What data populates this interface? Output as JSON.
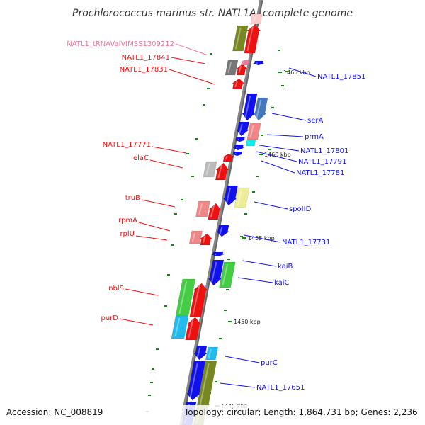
{
  "title": "Prochlorococcus marinus str. NATL1A, complete genome",
  "accession": "Accession: NC_008819",
  "topology": "Topology: circular; Length: 1,864,731 bp; Genes: 2,236",
  "colors": {
    "backbone": "#888888",
    "red": "#ee1111",
    "blue": "#1111ee",
    "pink": "#ee7799",
    "olive": "#778822",
    "green": "#44cc44",
    "gray": "#777777",
    "lightgray": "#bbbbbb",
    "salmon": "#ee8888",
    "steel": "#4477bb",
    "cyan": "#22bbee",
    "aqua": "#00eeee",
    "khaki": "#eeee99",
    "lightpink": "#ffcccc",
    "tick": "#118811"
  },
  "kbp_markers": [
    "1465 kbp",
    "1460 kbp",
    "1455 kbp",
    "1450 kbp",
    "1445 kbp"
  ],
  "genes_left": [
    {
      "label": "NATL1_tRNAValVIMSS1309212",
      "color": "pink"
    },
    {
      "label": "NATL1_17841",
      "color": "red"
    },
    {
      "label": "NATL1_17831",
      "color": "red"
    },
    {
      "label": "NATL1_17771",
      "color": "red"
    },
    {
      "label": "elaC",
      "color": "red"
    },
    {
      "label": "truB",
      "color": "red"
    },
    {
      "label": "rpmA",
      "color": "red"
    },
    {
      "label": "rplU",
      "color": "red"
    },
    {
      "label": "nblS",
      "color": "red"
    },
    {
      "label": "purD",
      "color": "red"
    }
  ],
  "genes_right": [
    {
      "label": "NATL1_17851",
      "color": "blue"
    },
    {
      "label": "serA",
      "color": "blue"
    },
    {
      "label": "prmA",
      "color": "blue"
    },
    {
      "label": "NATL1_17801",
      "color": "blue"
    },
    {
      "label": "NATL1_17791",
      "color": "blue"
    },
    {
      "label": "NATL1_17781",
      "color": "blue"
    },
    {
      "label": "spoIID",
      "color": "blue"
    },
    {
      "label": "NATL1_17731",
      "color": "blue"
    },
    {
      "label": "kaiB",
      "color": "blue"
    },
    {
      "label": "kaiC",
      "color": "blue"
    },
    {
      "label": "purC",
      "color": "blue"
    },
    {
      "label": "NATL1_17651",
      "color": "blue"
    }
  ]
}
